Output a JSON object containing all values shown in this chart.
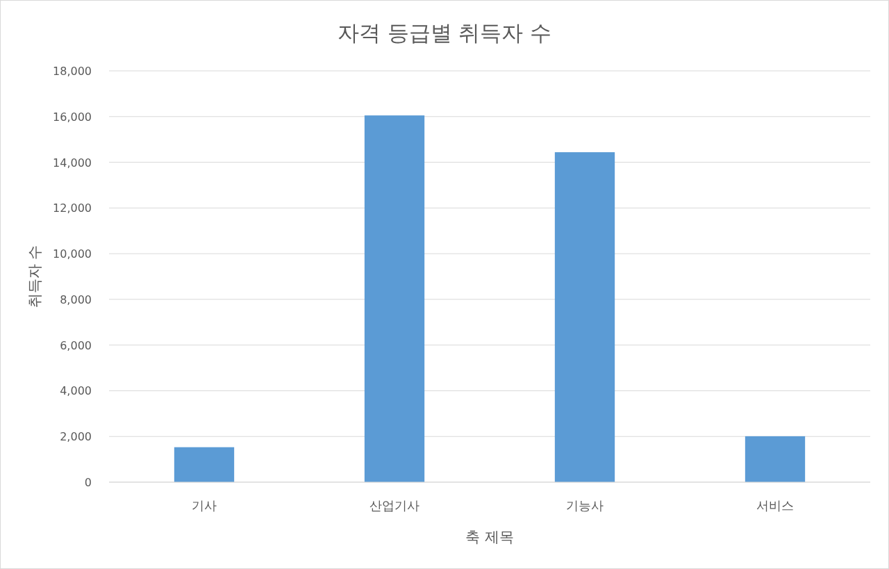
{
  "chart_data": {
    "type": "bar",
    "title": "자격 등급별 취득자 수",
    "xlabel": "축 제목",
    "ylabel": "취득자 수",
    "categories": [
      "기사",
      "산업기사",
      "기능사",
      "서비스"
    ],
    "values": [
      1530,
      16050,
      14440,
      2010
    ],
    "color": "#5b9bd5",
    "ylim": [
      0,
      18000
    ],
    "yticks": [
      {
        "value": 0,
        "label": "0"
      },
      {
        "value": 2000,
        "label": "2,000"
      },
      {
        "value": 4000,
        "label": "4,000"
      },
      {
        "value": 6000,
        "label": "6,000"
      },
      {
        "value": 8000,
        "label": "8,000"
      },
      {
        "value": 10000,
        "label": "10,000"
      },
      {
        "value": 12000,
        "label": "12,000"
      },
      {
        "value": 14000,
        "label": "14,000"
      },
      {
        "value": 16000,
        "label": "16,000"
      },
      {
        "value": 18000,
        "label": "18,000"
      }
    ],
    "grid": "y"
  }
}
